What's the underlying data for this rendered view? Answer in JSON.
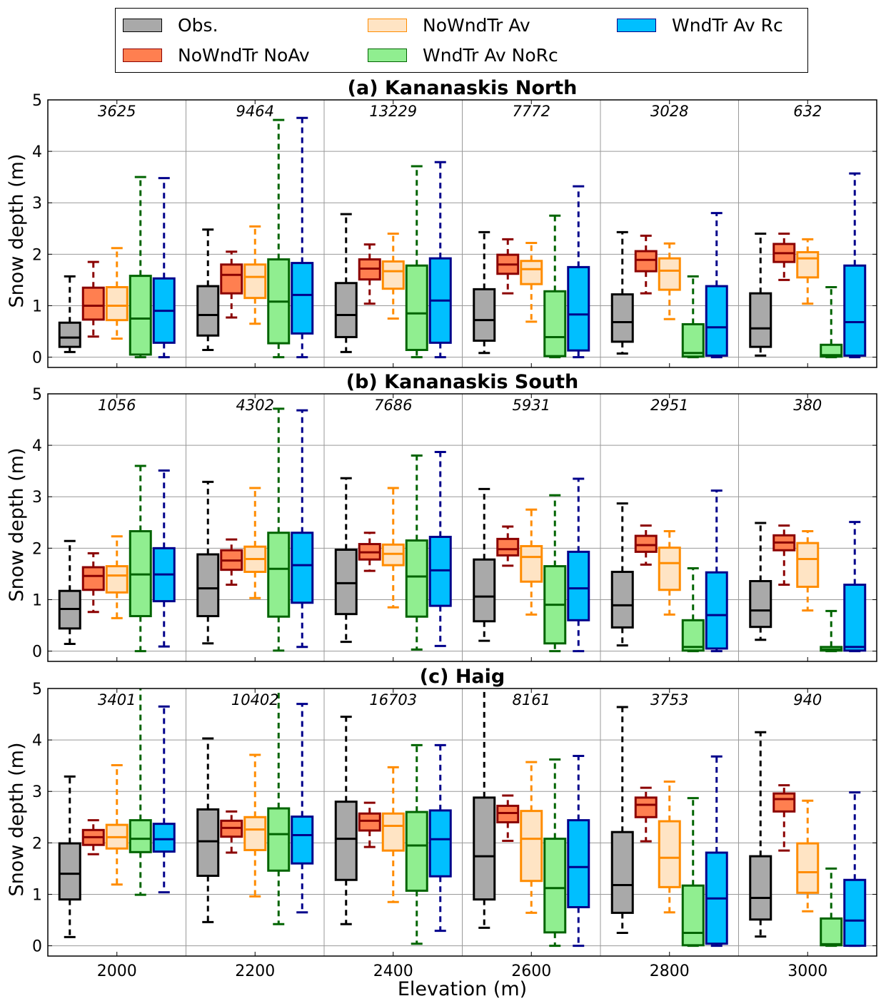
{
  "chart_data": {
    "type": "boxplot",
    "xlabel": "Elevation (m)",
    "ylabel": "Snow depth (m)",
    "xlim": [
      1900,
      3100
    ],
    "ylim": [
      -0.2,
      5
    ],
    "x_ticks": [
      2000,
      2200,
      2400,
      2600,
      2800,
      3000
    ],
    "y_ticks": [
      0,
      1,
      2,
      3,
      4,
      5
    ],
    "grid": true,
    "legend_position": "top-center",
    "series": [
      {
        "name": "Obs.",
        "face": "#a9a9a9",
        "edge": "#000000"
      },
      {
        "name": "NoWndTr NoAv",
        "face": "#ff7f50",
        "edge": "#8b0000"
      },
      {
        "name": "NoWndTr Av",
        "face": "#ffe4c4",
        "edge": "#ff8c00"
      },
      {
        "name": "WndTr Av NoRc",
        "face": "#90ee90",
        "edge": "#006400"
      },
      {
        "name": "WndTr Av Rc",
        "face": "#00bfff",
        "edge": "#00008b"
      }
    ],
    "legend_order": [
      0,
      2,
      4,
      1,
      3
    ],
    "panels": [
      {
        "title": "(a)  Kananaskis North",
        "counts": [
          "3625",
          "9464",
          "13229",
          "7772",
          "3028",
          "632"
        ],
        "boxes": [
          [
            [
              0.1,
              0.2,
              0.38,
              0.67,
              1.57
            ],
            [
              0.4,
              0.73,
              1.0,
              1.35,
              1.85
            ],
            [
              0.36,
              0.72,
              1.0,
              1.36,
              2.12
            ],
            [
              0,
              0.05,
              0.75,
              1.58,
              3.5
            ],
            [
              0,
              0.28,
              0.9,
              1.53,
              3.48
            ]
          ],
          [
            [
              0.14,
              0.42,
              0.82,
              1.38,
              2.48
            ],
            [
              0.77,
              1.24,
              1.6,
              1.8,
              2.05
            ],
            [
              0.65,
              1.15,
              1.56,
              1.8,
              2.54
            ],
            [
              0,
              0.27,
              1.08,
              1.9,
              4.61
            ],
            [
              0,
              0.46,
              1.21,
              1.83,
              4.65
            ]
          ],
          [
            [
              0.1,
              0.39,
              0.82,
              1.44,
              2.78
            ],
            [
              1.04,
              1.51,
              1.72,
              1.9,
              2.19
            ],
            [
              0.75,
              1.33,
              1.67,
              1.86,
              2.4
            ],
            [
              0,
              0.14,
              0.85,
              1.78,
              3.71
            ],
            [
              0,
              0.28,
              1.1,
              1.92,
              3.79
            ]
          ],
          [
            [
              0.08,
              0.32,
              0.72,
              1.32,
              2.43
            ],
            [
              1.24,
              1.62,
              1.8,
              1.99,
              2.29
            ],
            [
              0.69,
              1.42,
              1.71,
              1.87,
              2.22
            ],
            [
              0,
              0.02,
              0.39,
              1.28,
              2.75
            ],
            [
              0,
              0.13,
              0.83,
              1.75,
              3.32
            ]
          ],
          [
            [
              0.07,
              0.3,
              0.68,
              1.22,
              2.43
            ],
            [
              1.24,
              1.67,
              1.89,
              2.06,
              2.36
            ],
            [
              0.74,
              1.31,
              1.68,
              1.92,
              2.21
            ],
            [
              0,
              0.01,
              0.08,
              0.64,
              1.57
            ],
            [
              0,
              0.03,
              0.58,
              1.38,
              2.8
            ]
          ],
          [
            [
              0.03,
              0.2,
              0.56,
              1.24,
              2.4
            ],
            [
              1.5,
              1.85,
              2.02,
              2.2,
              2.4
            ],
            [
              1.04,
              1.55,
              1.92,
              2.04,
              2.29
            ],
            [
              0,
              0.01,
              0.04,
              0.24,
              1.36
            ],
            [
              0,
              0.03,
              0.68,
              1.78,
              3.57
            ]
          ]
        ]
      },
      {
        "title": "(b) Kananaskis South",
        "counts": [
          "1056",
          "4302",
          "7686",
          "5931",
          "2951",
          "380"
        ],
        "boxes": [
          [
            [
              0.14,
              0.44,
              0.82,
              1.17,
              2.14
            ],
            [
              0.76,
              1.19,
              1.46,
              1.63,
              1.9
            ],
            [
              0.64,
              1.14,
              1.47,
              1.65,
              2.23
            ],
            [
              0,
              0.68,
              1.49,
              2.33,
              3.6
            ],
            [
              0.09,
              0.97,
              1.49,
              2.0,
              3.51
            ]
          ],
          [
            [
              0.15,
              0.68,
              1.22,
              1.88,
              3.29
            ],
            [
              1.29,
              1.58,
              1.76,
              1.96,
              2.17
            ],
            [
              1.03,
              1.54,
              1.79,
              2.03,
              3.17
            ],
            [
              0.01,
              0.67,
              1.6,
              2.3,
              4.71
            ],
            [
              0.08,
              0.94,
              1.67,
              2.3,
              4.68
            ]
          ],
          [
            [
              0.18,
              0.72,
              1.32,
              1.97,
              3.36
            ],
            [
              1.56,
              1.78,
              1.92,
              2.08,
              2.3
            ],
            [
              0.85,
              1.67,
              1.89,
              2.07,
              3.17
            ],
            [
              0.03,
              0.67,
              1.45,
              2.15,
              3.8
            ],
            [
              0.1,
              0.88,
              1.57,
              2.22,
              3.87
            ]
          ],
          [
            [
              0.2,
              0.58,
              1.06,
              1.78,
              3.15
            ],
            [
              1.66,
              1.86,
              1.98,
              2.18,
              2.42
            ],
            [
              0.71,
              1.35,
              1.83,
              2.04,
              2.75
            ],
            [
              0,
              0.15,
              0.9,
              1.65,
              3.03
            ],
            [
              0,
              0.6,
              1.22,
              1.93,
              3.35
            ]
          ],
          [
            [
              0.11,
              0.46,
              0.89,
              1.54,
              2.87
            ],
            [
              1.68,
              1.93,
              2.06,
              2.24,
              2.44
            ],
            [
              0.71,
              1.19,
              1.71,
              2.01,
              2.33
            ],
            [
              0,
              0.01,
              0.08,
              0.6,
              1.61
            ],
            [
              0,
              0.05,
              0.7,
              1.53,
              3.12
            ]
          ],
          [
            [
              0.22,
              0.47,
              0.79,
              1.36,
              2.49
            ],
            [
              1.29,
              1.96,
              2.11,
              2.25,
              2.44
            ],
            [
              0.79,
              1.25,
              1.79,
              2.1,
              2.33
            ],
            [
              0,
              0.01,
              0.03,
              0.08,
              0.78
            ],
            [
              0,
              0.01,
              0.08,
              1.29,
              2.51
            ]
          ]
        ]
      },
      {
        "title": "(c) Haig",
        "counts": [
          "3401",
          "10402",
          "16703",
          "8161",
          "3753",
          "940"
        ],
        "boxes": [
          [
            [
              0.17,
              0.9,
              1.4,
              1.99,
              3.29
            ],
            [
              1.78,
              1.96,
              2.11,
              2.25,
              2.44
            ],
            [
              1.19,
              1.89,
              2.11,
              2.35,
              3.51
            ],
            [
              0.99,
              1.82,
              2.08,
              2.44,
              5.3
            ],
            [
              1.04,
              1.83,
              2.07,
              2.37,
              4.65
            ]
          ],
          [
            [
              0.46,
              1.36,
              2.03,
              2.65,
              4.03
            ],
            [
              1.81,
              2.12,
              2.29,
              2.43,
              2.61
            ],
            [
              0.96,
              1.86,
              2.26,
              2.5,
              3.71
            ],
            [
              0.42,
              1.46,
              2.17,
              2.67,
              5.1
            ],
            [
              0.65,
              1.6,
              2.15,
              2.51,
              4.7
            ]
          ],
          [
            [
              0.42,
              1.28,
              2.08,
              2.8,
              4.45
            ],
            [
              1.92,
              2.24,
              2.43,
              2.57,
              2.78
            ],
            [
              0.85,
              1.85,
              2.33,
              2.57,
              3.47
            ],
            [
              0.04,
              1.07,
              1.95,
              2.6,
              3.9
            ],
            [
              0.29,
              1.35,
              2.07,
              2.63,
              3.9
            ]
          ],
          [
            [
              0.35,
              0.9,
              1.74,
              2.88,
              5.2
            ],
            [
              2.04,
              2.4,
              2.58,
              2.72,
              2.92
            ],
            [
              0.64,
              1.26,
              2.08,
              2.62,
              3.57
            ],
            [
              0,
              0.26,
              1.12,
              2.08,
              3.62
            ],
            [
              0,
              0.75,
              1.53,
              2.44,
              3.69
            ]
          ],
          [
            [
              0.25,
              0.64,
              1.18,
              2.21,
              4.64
            ],
            [
              2.03,
              2.5,
              2.74,
              2.88,
              3.07
            ],
            [
              0.65,
              1.14,
              1.71,
              2.42,
              3.19
            ],
            [
              0,
              0.01,
              0.25,
              1.17,
              2.87
            ],
            [
              0,
              0.04,
              0.92,
              1.81,
              3.68
            ]
          ],
          [
            [
              0.18,
              0.51,
              0.93,
              1.74,
              4.15
            ],
            [
              1.85,
              2.61,
              2.85,
              2.96,
              3.12
            ],
            [
              0.67,
              1.03,
              1.43,
              1.99,
              2.82
            ],
            [
              0,
              0.01,
              0.03,
              0.53,
              1.5
            ],
            [
              0,
              0,
              0.49,
              1.28,
              2.98
            ]
          ]
        ]
      }
    ]
  }
}
